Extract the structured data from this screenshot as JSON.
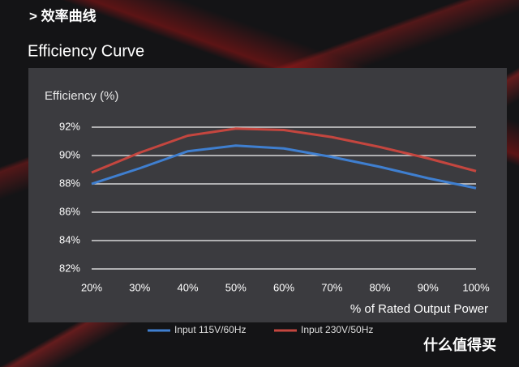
{
  "header": {
    "section": "> 效率曲线"
  },
  "watermark": "什么值得买",
  "chart_data": {
    "type": "line",
    "title": "Efficiency Curve",
    "y_label": "Efficiency (%)",
    "x_label": "% of Rated Output Power",
    "x": [
      20,
      30,
      40,
      50,
      60,
      70,
      80,
      90,
      100
    ],
    "xlim": [
      20,
      100
    ],
    "xticks": [
      {
        "value": 20,
        "label": "20%"
      },
      {
        "value": 30,
        "label": "30%"
      },
      {
        "value": 40,
        "label": "40%"
      },
      {
        "value": 50,
        "label": "50%"
      },
      {
        "value": 60,
        "label": "60%"
      },
      {
        "value": 70,
        "label": "70%"
      },
      {
        "value": 80,
        "label": "80%"
      },
      {
        "value": 90,
        "label": "90%"
      },
      {
        "value": 100,
        "label": "100%"
      }
    ],
    "ylim": [
      82,
      92
    ],
    "yticks": [
      {
        "value": 82,
        "label": "82%"
      },
      {
        "value": 84,
        "label": "84%"
      },
      {
        "value": 86,
        "label": "86%"
      },
      {
        "value": 88,
        "label": "88%"
      },
      {
        "value": 90,
        "label": "90%"
      },
      {
        "value": 92,
        "label": "92%"
      }
    ],
    "grid": true,
    "series": [
      {
        "name": "Input 115V/60Hz",
        "color": "#3f7fd0",
        "values": [
          88.0,
          89.1,
          90.3,
          90.7,
          90.5,
          89.9,
          89.2,
          88.4,
          87.7
        ]
      },
      {
        "name": "Input 230V/50Hz",
        "color": "#c4463f",
        "values": [
          88.8,
          90.2,
          91.4,
          91.9,
          91.8,
          91.3,
          90.6,
          89.8,
          88.9
        ]
      }
    ]
  }
}
